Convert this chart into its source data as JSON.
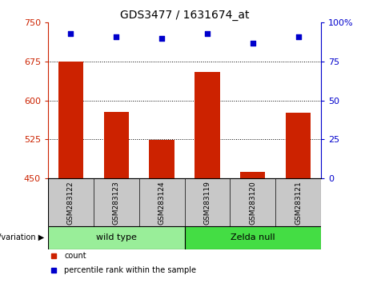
{
  "title": "GDS3477 / 1631674_at",
  "samples": [
    "GSM283122",
    "GSM283123",
    "GSM283124",
    "GSM283119",
    "GSM283120",
    "GSM283121"
  ],
  "bar_values": [
    675,
    578,
    524,
    655,
    462,
    577
  ],
  "scatter_values": [
    93,
    91,
    90,
    93,
    87,
    91
  ],
  "bar_color": "#cc2200",
  "scatter_color": "#0000cc",
  "ylim_left": [
    450,
    750
  ],
  "yticks_left": [
    450,
    525,
    600,
    675,
    750
  ],
  "ylim_right": [
    0,
    100
  ],
  "yticks_right": [
    0,
    25,
    50,
    75,
    100
  ],
  "grid_values": [
    525,
    600,
    675
  ],
  "groups": [
    {
      "label": "wild type",
      "indices": [
        0,
        1,
        2
      ],
      "color": "#99ee99"
    },
    {
      "label": "Zelda null",
      "indices": [
        3,
        4,
        5
      ],
      "color": "#44dd44"
    }
  ],
  "group_label": "genotype/variation",
  "legend_items": [
    {
      "label": "count",
      "color": "#cc2200"
    },
    {
      "label": "percentile rank within the sample",
      "color": "#0000cc"
    }
  ],
  "bar_width": 0.55,
  "xlabel_area_color": "#c8c8c8",
  "background_color": "#ffffff"
}
